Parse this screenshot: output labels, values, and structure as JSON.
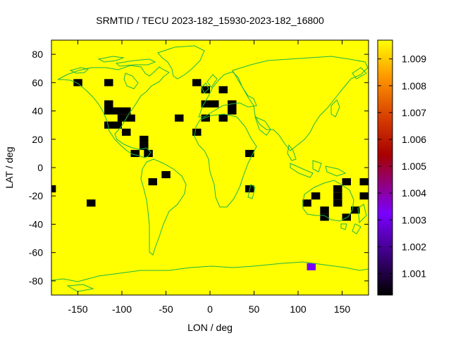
{
  "chart_data": {
    "type": "heatmap",
    "title": "SRMTID / TECU 2023-182_15930-2023-182_16800",
    "xlabel": "LON / deg",
    "ylabel": "LAT / deg",
    "xlim": [
      -180,
      180
    ],
    "ylim": [
      -90,
      90
    ],
    "xticks": [
      -150,
      -100,
      -50,
      0,
      50,
      100,
      150
    ],
    "yticks": [
      -80,
      -60,
      -40,
      -20,
      0,
      20,
      40,
      60,
      80
    ],
    "xtick_labels": [
      "-150",
      "-100",
      "-50",
      "0",
      "50",
      "100",
      "150"
    ],
    "ytick_labels": [
      "-80",
      "-60",
      "-40",
      "-20",
      "0",
      "20",
      "40",
      "60",
      "80"
    ],
    "background_value": 1.0096,
    "cell_size_deg": 10,
    "colorbar": {
      "min": 1.0002,
      "max": 1.0097,
      "ticks": [
        1.001,
        1.002,
        1.003,
        1.004,
        1.005,
        1.006,
        1.007,
        1.008,
        1.009
      ],
      "tick_labels": [
        "1.001",
        "1.002",
        "1.003",
        "1.004",
        "1.005",
        "1.006",
        "1.007",
        "1.008",
        "1.009"
      ],
      "palette": [
        "#000000",
        "#7a00ff",
        "#b00000",
        "#d84000",
        "#ff9a00",
        "#ffff00"
      ]
    },
    "grid": false,
    "cells": [
      {
        "lon": -180,
        "lat": -15,
        "value": 1.0002
      },
      {
        "lon": -135,
        "lat": -25,
        "value": 1.0002
      },
      {
        "lon": -150,
        "lat": 60,
        "value": 1.0002
      },
      {
        "lon": -115,
        "lat": 60,
        "value": 1.0002
      },
      {
        "lon": -115,
        "lat": 45,
        "value": 1.0002
      },
      {
        "lon": -115,
        "lat": 40,
        "value": 1.0002
      },
      {
        "lon": -105,
        "lat": 40,
        "value": 1.0002
      },
      {
        "lon": -95,
        "lat": 40,
        "value": 1.0002
      },
      {
        "lon": -100,
        "lat": 35,
        "value": 1.0002
      },
      {
        "lon": -90,
        "lat": 35,
        "value": 1.0002
      },
      {
        "lon": -115,
        "lat": 30,
        "value": 1.0002
      },
      {
        "lon": -105,
        "lat": 30,
        "value": 1.0002
      },
      {
        "lon": -95,
        "lat": 25,
        "value": 1.0002
      },
      {
        "lon": -75,
        "lat": 20,
        "value": 1.0002
      },
      {
        "lon": -75,
        "lat": 15,
        "value": 1.0002
      },
      {
        "lon": -85,
        "lat": 10,
        "value": 1.0002
      },
      {
        "lon": -70,
        "lat": 10,
        "value": 1.0002
      },
      {
        "lon": -50,
        "lat": -5,
        "value": 1.0002
      },
      {
        "lon": -65,
        "lat": -10,
        "value": 1.0002
      },
      {
        "lon": -35,
        "lat": 35,
        "value": 1.0002
      },
      {
        "lon": -15,
        "lat": 60,
        "value": 1.0002
      },
      {
        "lon": -15,
        "lat": 25,
        "value": 1.0002
      },
      {
        "lon": -5,
        "lat": 55,
        "value": 1.0002
      },
      {
        "lon": -5,
        "lat": 45,
        "value": 1.0002
      },
      {
        "lon": -5,
        "lat": 35,
        "value": 1.0002
      },
      {
        "lon": 5,
        "lat": 45,
        "value": 1.0002
      },
      {
        "lon": 15,
        "lat": 55,
        "value": 1.0002
      },
      {
        "lon": 15,
        "lat": 35,
        "value": 1.0002
      },
      {
        "lon": 25,
        "lat": 45,
        "value": 1.0002
      },
      {
        "lon": 25,
        "lat": 40,
        "value": 1.0002
      },
      {
        "lon": 45,
        "lat": 10,
        "value": 1.0002
      },
      {
        "lon": 45,
        "lat": -15,
        "value": 1.0002
      },
      {
        "lon": 110,
        "lat": -25,
        "value": 1.0002
      },
      {
        "lon": 120,
        "lat": -20,
        "value": 1.0002
      },
      {
        "lon": 130,
        "lat": -30,
        "value": 1.0002
      },
      {
        "lon": 130,
        "lat": -35,
        "value": 1.0002
      },
      {
        "lon": 145,
        "lat": -15,
        "value": 1.0002
      },
      {
        "lon": 145,
        "lat": -20,
        "value": 1.0002
      },
      {
        "lon": 145,
        "lat": -25,
        "value": 1.0002
      },
      {
        "lon": 155,
        "lat": -10,
        "value": 1.0002
      },
      {
        "lon": 155,
        "lat": -35,
        "value": 1.0002
      },
      {
        "lon": 165,
        "lat": -30,
        "value": 1.0002
      },
      {
        "lon": 175,
        "lat": -10,
        "value": 1.0002
      },
      {
        "lon": 175,
        "lat": -20,
        "value": 1.0002
      },
      {
        "lon": 115,
        "lat": -70,
        "value": 1.0033
      }
    ]
  }
}
